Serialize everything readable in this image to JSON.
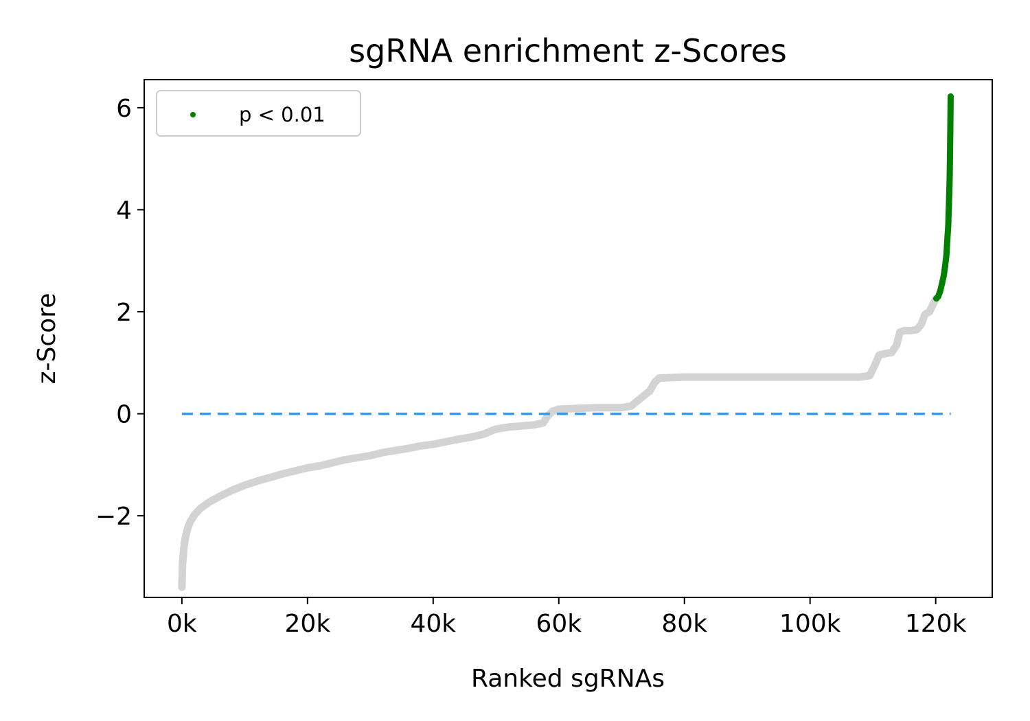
{
  "chart_data": {
    "type": "scatter",
    "title": "sgRNA enrichment z-Scores",
    "xlabel": "Ranked sgRNAs",
    "ylabel": "z-Score",
    "xlim": [
      -6000,
      129000
    ],
    "ylim": [
      -3.6,
      6.55
    ],
    "xticks": [
      {
        "value": 0,
        "label": "0k"
      },
      {
        "value": 20000,
        "label": "20k"
      },
      {
        "value": 40000,
        "label": "40k"
      },
      {
        "value": 60000,
        "label": "60k"
      },
      {
        "value": 80000,
        "label": "80k"
      },
      {
        "value": 100000,
        "label": "100k"
      },
      {
        "value": 120000,
        "label": "120k"
      }
    ],
    "yticks": [
      {
        "value": -2,
        "label": "−2"
      },
      {
        "value": 0,
        "label": "0"
      },
      {
        "value": 2,
        "label": "2"
      },
      {
        "value": 4,
        "label": "4"
      },
      {
        "value": 6,
        "label": "6"
      }
    ],
    "grid": false,
    "legend": {
      "placement": "top-left",
      "entries": [
        "p < 0.01"
      ]
    },
    "reference_line": {
      "y": 0,
      "x_range": [
        0,
        122400
      ],
      "style": "dashed",
      "color": "#3399ff"
    },
    "series": [
      {
        "name": "",
        "color": "#d3d3d3",
        "points": [
          [
            0,
            -3.4
          ],
          [
            100,
            -2.95
          ],
          [
            200,
            -2.8
          ],
          [
            300,
            -2.65
          ],
          [
            400,
            -2.55
          ],
          [
            600,
            -2.4
          ],
          [
            900,
            -2.25
          ],
          [
            1300,
            -2.12
          ],
          [
            2000,
            -1.98
          ],
          [
            3000,
            -1.85
          ],
          [
            4500,
            -1.72
          ],
          [
            6000,
            -1.62
          ],
          [
            8000,
            -1.5
          ],
          [
            10000,
            -1.4
          ],
          [
            12000,
            -1.32
          ],
          [
            14000,
            -1.25
          ],
          [
            16000,
            -1.18
          ],
          [
            18000,
            -1.12
          ],
          [
            20000,
            -1.06
          ],
          [
            22000,
            -1.02
          ],
          [
            24000,
            -0.96
          ],
          [
            26000,
            -0.9
          ],
          [
            28000,
            -0.86
          ],
          [
            30000,
            -0.82
          ],
          [
            32000,
            -0.76
          ],
          [
            34000,
            -0.72
          ],
          [
            36000,
            -0.68
          ],
          [
            38000,
            -0.63
          ],
          [
            40000,
            -0.6
          ],
          [
            42000,
            -0.55
          ],
          [
            44000,
            -0.5
          ],
          [
            46000,
            -0.46
          ],
          [
            48000,
            -0.4
          ],
          [
            50000,
            -0.3
          ],
          [
            52000,
            -0.26
          ],
          [
            54000,
            -0.24
          ],
          [
            56000,
            -0.22
          ],
          [
            57500,
            -0.18
          ],
          [
            58200,
            -0.05
          ],
          [
            59000,
            0.05
          ],
          [
            60000,
            0.09
          ],
          [
            62000,
            0.1
          ],
          [
            64000,
            0.11
          ],
          [
            66000,
            0.12
          ],
          [
            68000,
            0.12
          ],
          [
            70000,
            0.12
          ],
          [
            71500,
            0.15
          ],
          [
            72500,
            0.25
          ],
          [
            73500,
            0.35
          ],
          [
            74500,
            0.45
          ],
          [
            75300,
            0.62
          ],
          [
            76000,
            0.7
          ],
          [
            78000,
            0.71
          ],
          [
            80000,
            0.72
          ],
          [
            84000,
            0.72
          ],
          [
            88000,
            0.72
          ],
          [
            92000,
            0.72
          ],
          [
            96000,
            0.72
          ],
          [
            100000,
            0.72
          ],
          [
            104000,
            0.72
          ],
          [
            108000,
            0.72
          ],
          [
            109500,
            0.75
          ],
          [
            110300,
            0.95
          ],
          [
            111000,
            1.15
          ],
          [
            112000,
            1.18
          ],
          [
            113000,
            1.2
          ],
          [
            113800,
            1.35
          ],
          [
            114300,
            1.6
          ],
          [
            115000,
            1.63
          ],
          [
            116000,
            1.63
          ],
          [
            117000,
            1.65
          ],
          [
            117700,
            1.75
          ],
          [
            118300,
            1.95
          ],
          [
            119000,
            2.0
          ],
          [
            119600,
            2.15
          ],
          [
            120000,
            2.25
          ]
        ]
      },
      {
        "name": "p < 0.01",
        "color": "#008000",
        "points": [
          [
            120100,
            2.26
          ],
          [
            120400,
            2.3
          ],
          [
            120700,
            2.4
          ],
          [
            121000,
            2.55
          ],
          [
            121300,
            2.72
          ],
          [
            121500,
            2.9
          ],
          [
            121700,
            3.1
          ],
          [
            121800,
            3.3
          ],
          [
            121900,
            3.5
          ],
          [
            122000,
            3.7
          ],
          [
            122050,
            3.9
          ],
          [
            122100,
            4.1
          ],
          [
            122150,
            4.3
          ],
          [
            122200,
            4.5
          ],
          [
            122230,
            4.7
          ],
          [
            122260,
            4.9
          ],
          [
            122280,
            5.05
          ],
          [
            122300,
            5.3
          ],
          [
            122320,
            5.5
          ],
          [
            122340,
            5.75
          ],
          [
            122360,
            6.03
          ],
          [
            122380,
            6.22
          ]
        ]
      }
    ]
  }
}
